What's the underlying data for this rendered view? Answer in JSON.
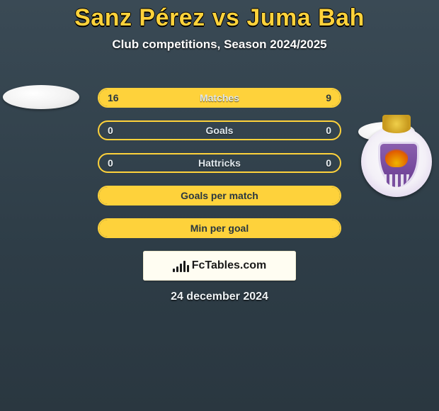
{
  "header": {
    "title": "Sanz Pérez vs Juma Bah",
    "subtitle": "Club competitions, Season 2024/2025"
  },
  "colors": {
    "accent": "#fed23b",
    "text_light": "#ffffff",
    "bg_top": "#3a4a55",
    "bg_bottom": "#2a3740",
    "pill_border": "#fed23b",
    "pill_fill": "#fed23b"
  },
  "stats": {
    "rows": [
      {
        "label": "Matches",
        "left": "16",
        "right": "9",
        "fill_left_pct": 64,
        "fill_right_pct": 36
      },
      {
        "label": "Goals",
        "left": "0",
        "right": "0",
        "fill_left_pct": 0,
        "fill_right_pct": 0
      },
      {
        "label": "Hattricks",
        "left": "0",
        "right": "0",
        "fill_left_pct": 0,
        "fill_right_pct": 0
      },
      {
        "label": "Goals per match",
        "left": "",
        "right": "",
        "full": true
      },
      {
        "label": "Min per goal",
        "left": "",
        "right": "",
        "full": true
      }
    ],
    "pill_height": 28,
    "pill_gap": 18,
    "label_fontsize": 14
  },
  "players": {
    "left": {
      "name": "Sanz Pérez",
      "has_crest": false
    },
    "right": {
      "name": "Juma Bah",
      "has_crest": true,
      "crest_name": "real-valladolid-crest"
    }
  },
  "brand": {
    "icon": "mini-bar-chart-icon",
    "text": "FcTables.com",
    "bar_heights": [
      5,
      8,
      12,
      16,
      10
    ]
  },
  "date": "24 december 2024"
}
